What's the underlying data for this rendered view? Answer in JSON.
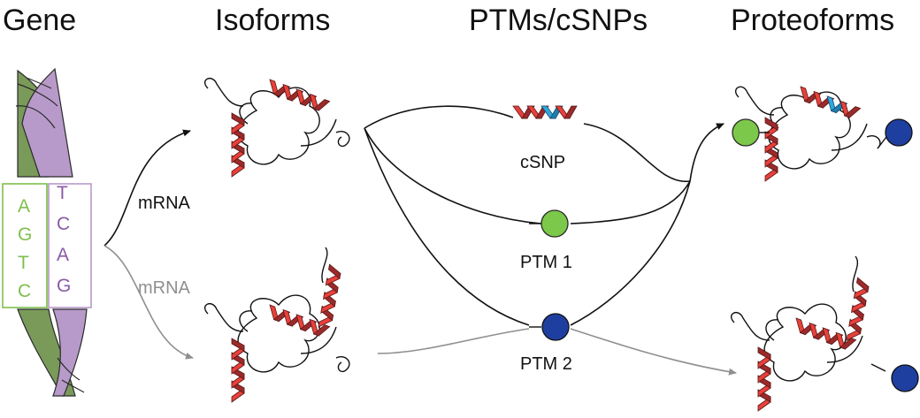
{
  "headings": {
    "gene": "Gene",
    "isoforms": "Isoforms",
    "ptms": "PTMs/cSNPs",
    "proteoforms": "Proteoforms"
  },
  "labels": {
    "mrna_top": "mRNA",
    "mrna_bottom": "mRNA",
    "csnp": "cSNP",
    "ptm1": "PTM 1",
    "ptm2": "PTM 2"
  },
  "gene_bases": {
    "left": [
      "A",
      "G",
      "T",
      "C"
    ],
    "right": [
      "T",
      "C",
      "A",
      "G"
    ]
  },
  "colors": {
    "helix_red": "#e8403a",
    "helix_dark": "#9b2a2a",
    "snp_blue": "#2fa8e0",
    "ptm1_green": "#7cc84a",
    "ptm2_blue": "#1f3fa0",
    "dna_green": "#7a9a5a",
    "dna_purple": "#b79ac9",
    "grey_arrow": "#8f8f8f"
  }
}
